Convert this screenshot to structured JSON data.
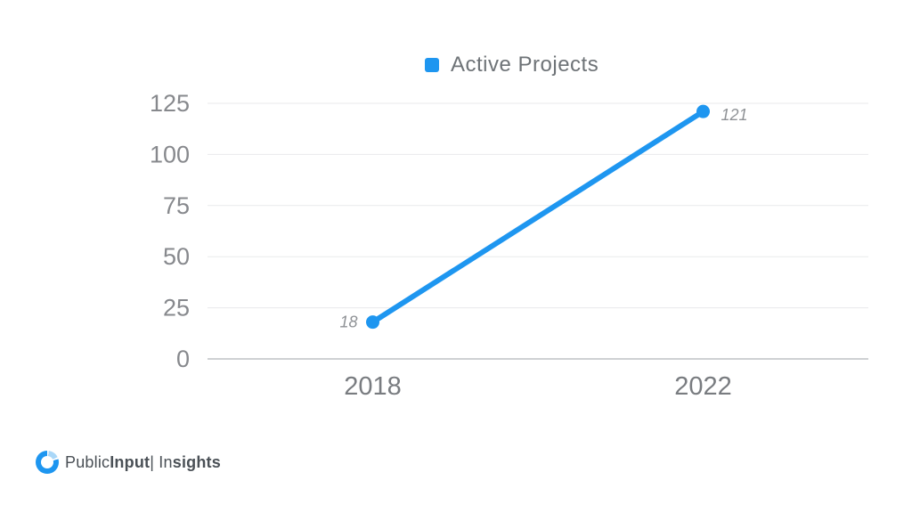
{
  "page": {
    "background_color": "#ffffff"
  },
  "legend": {
    "label": "Active Projects",
    "marker_color": "#1e96f0"
  },
  "chart_data": {
    "type": "line",
    "title": "Active Projects",
    "categories": [
      "2018",
      "2022"
    ],
    "series": [
      {
        "name": "Active Projects",
        "color": "#1e96f0",
        "values": [
          18,
          121
        ]
      }
    ],
    "data_labels": [
      "18",
      "121"
    ],
    "data_label_positions": [
      "left",
      "right"
    ],
    "yticks": [
      0,
      25,
      50,
      75,
      100,
      125
    ],
    "ylim": [
      0,
      125
    ],
    "xlabel": "",
    "ylabel": "",
    "grid": true,
    "legend_position": "top",
    "colors": {
      "gridline": "#e9eaeb",
      "baseline": "#cfd1d3",
      "tick_label": "#87898d",
      "category_label": "#797c80",
      "data_label": "#8f9296"
    }
  },
  "footer": {
    "logo": {
      "icon": "publicinput-logo-icon",
      "part_public": "Public",
      "part_input": "Input",
      "separator": "|",
      "part_in": " In",
      "part_sights": "sights"
    }
  }
}
